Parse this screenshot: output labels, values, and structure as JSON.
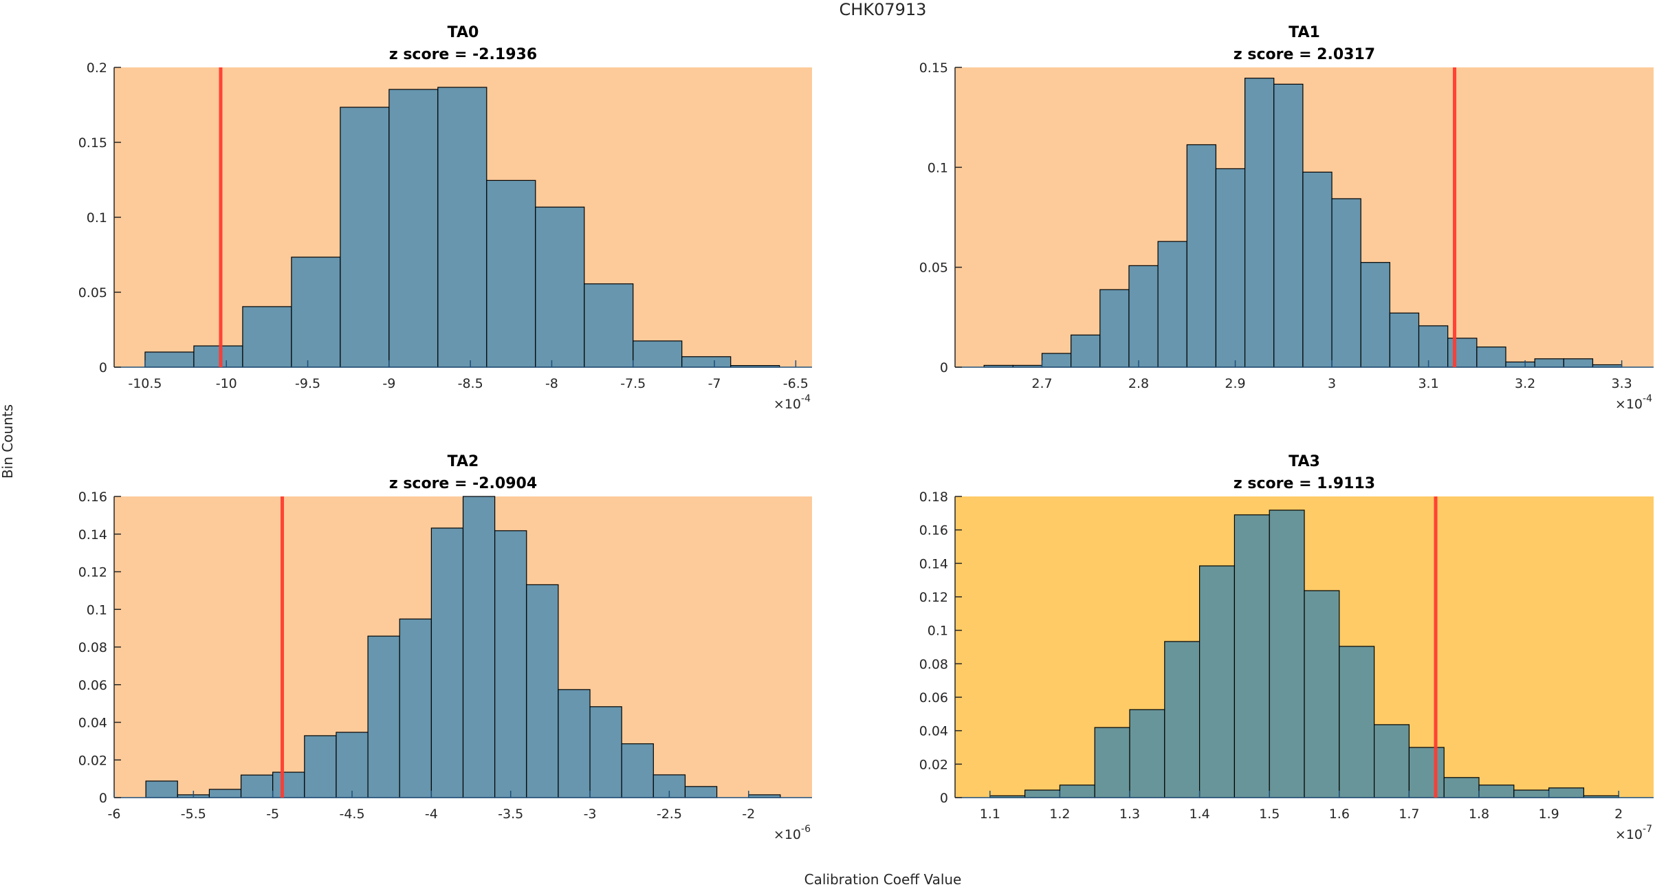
{
  "chart_data": {
    "title": "CHK07913",
    "xlabel": "Calibration Coeff Value",
    "ylabel": "Bin Counts",
    "panels": [
      {
        "type": "bar",
        "name": "TA0",
        "title_line1": "TA0",
        "title_line2": "z score = -2.1936",
        "background_color": "#FDCB9A",
        "bar_color": "#6796AE",
        "bin_start": -10.5,
        "bin_width": 0.3,
        "values": [
          0.0101,
          0.0142,
          0.0404,
          0.0734,
          0.1734,
          0.1853,
          0.1867,
          0.1246,
          0.1068,
          0.0556,
          0.0175,
          0.007,
          0.0011
        ],
        "marker_x": -10.035,
        "xlim": [
          -10.69,
          -6.4
        ],
        "ylim": [
          0,
          0.2
        ],
        "xticks": [
          -10.5,
          -10,
          -9.5,
          -9,
          -8.5,
          -8,
          -7.5,
          -7,
          -6.5
        ],
        "xtick_labels": [
          "-10.5",
          "-10",
          "-9.5",
          "-9",
          "-8.5",
          "-8",
          "-7.5",
          "-7",
          "-6.5"
        ],
        "yticks": [
          0,
          0.05,
          0.1,
          0.15,
          0.2
        ],
        "ytick_labels": [
          "0",
          "0.05",
          "0.1",
          "0.15",
          "0.2"
        ],
        "x_exponent_base": "×10",
        "x_exponent": "-4"
      },
      {
        "type": "bar",
        "name": "TA1",
        "title_line1": "TA1",
        "title_line2": "z score = 2.0317",
        "background_color": "#FDCB9A",
        "bar_color": "#6796AE",
        "bin_start": 2.64,
        "bin_width": 0.03,
        "values": [
          0.0009,
          0.0009,
          0.0069,
          0.0161,
          0.0388,
          0.0508,
          0.0629,
          0.1113,
          0.0993,
          0.1446,
          0.1416,
          0.0976,
          0.0843,
          0.0524,
          0.0271,
          0.0207,
          0.0145,
          0.0101,
          0.0026,
          0.0042,
          0.0042,
          0.0012
        ],
        "marker_x": 3.127,
        "xlim": [
          2.61,
          3.333
        ],
        "ylim": [
          0,
          0.15
        ],
        "xticks": [
          2.7,
          2.8,
          2.9,
          3.0,
          3.1,
          3.2,
          3.3
        ],
        "xtick_labels": [
          "2.7",
          "2.8",
          "2.9",
          "3",
          "3.1",
          "3.2",
          "3.3"
        ],
        "yticks": [
          0,
          0.05,
          0.1,
          0.15
        ],
        "ytick_labels": [
          "0",
          "0.05",
          "0.1",
          "0.15"
        ],
        "x_exponent_base": "×10",
        "x_exponent": "-4"
      },
      {
        "type": "bar",
        "name": "TA2",
        "title_line1": "TA2",
        "title_line2": "z score = -2.0904",
        "background_color": "#FDCB9A",
        "bar_color": "#6796AE",
        "bin_start": -5.8,
        "bin_width": 0.2,
        "values": [
          0.0088,
          0.0015,
          0.0044,
          0.012,
          0.0135,
          0.0329,
          0.0347,
          0.0858,
          0.0949,
          0.1432,
          0.16,
          0.1418,
          0.1131,
          0.0574,
          0.0483,
          0.0286,
          0.0121,
          0.0059,
          0.0,
          0.0015
        ],
        "marker_x": -4.94,
        "xlim": [
          -6.0,
          -1.6
        ],
        "ylim": [
          0,
          0.16
        ],
        "xticks": [
          -6,
          -5.5,
          -5,
          -4.5,
          -4,
          -3.5,
          -3,
          -2.5,
          -2
        ],
        "xtick_labels": [
          "-6",
          "-5.5",
          "-5",
          "-4.5",
          "-4",
          "-3.5",
          "-3",
          "-2.5",
          "-2"
        ],
        "yticks": [
          0,
          0.02,
          0.04,
          0.06,
          0.08,
          0.1,
          0.12,
          0.14,
          0.16
        ],
        "ytick_labels": [
          "0",
          "0.02",
          "0.04",
          "0.06",
          "0.08",
          "0.1",
          "0.12",
          "0.14",
          "0.16"
        ],
        "x_exponent_base": "×10",
        "x_exponent": "-6"
      },
      {
        "type": "bar",
        "name": "TA3",
        "title_line1": "TA3",
        "title_line2": "z score = 1.9113",
        "background_color": "#FECB66",
        "bar_color": "#689599",
        "bin_start": 1.1,
        "bin_width": 0.05,
        "values": [
          0.0011,
          0.0045,
          0.0075,
          0.0419,
          0.0526,
          0.0933,
          0.1385,
          0.169,
          0.1718,
          0.1237,
          0.0904,
          0.0436,
          0.03,
          0.012,
          0.0075,
          0.0045,
          0.0058,
          0.0011
        ],
        "marker_x": 1.738,
        "xlim": [
          1.05,
          2.05
        ],
        "ylim": [
          0,
          0.18
        ],
        "xticks": [
          1.1,
          1.2,
          1.3,
          1.4,
          1.5,
          1.6,
          1.7,
          1.8,
          1.9,
          2.0
        ],
        "xtick_labels": [
          "1.1",
          "1.2",
          "1.3",
          "1.4",
          "1.5",
          "1.6",
          "1.7",
          "1.8",
          "1.9",
          "2"
        ],
        "yticks": [
          0,
          0.02,
          0.04,
          0.06,
          0.08,
          0.1,
          0.12,
          0.14,
          0.16,
          0.18
        ],
        "ytick_labels": [
          "0",
          "0.02",
          "0.04",
          "0.06",
          "0.08",
          "0.1",
          "0.12",
          "0.14",
          "0.16",
          "0.18"
        ],
        "x_exponent_base": "×10",
        "x_exponent": "-7"
      }
    ],
    "marker_color": "#FF3B30",
    "grid": false,
    "legend": "none"
  }
}
